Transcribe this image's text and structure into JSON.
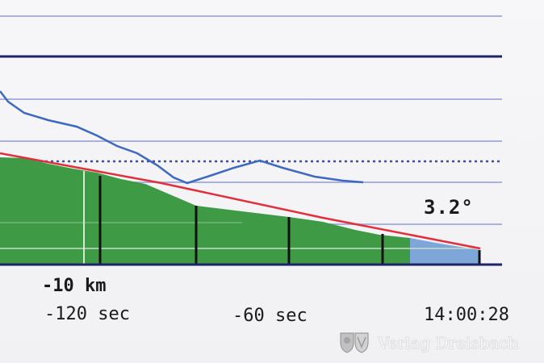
{
  "display": {
    "angle_readout": "3.2°",
    "distance_label": "-10 km",
    "time_labels": [
      "-120 sec",
      "-60 sec"
    ],
    "clock": "14:00:28"
  },
  "watermark": {
    "text": "Verlag Dreisbach",
    "icon": "crest-logo-icon"
  },
  "colors": {
    "terrain": "#3f9a45",
    "terrain_recent": "#7ea6d8",
    "glide_line": "#e0303c",
    "track_line": "#3d69bf",
    "grid": "#aab0e0",
    "grid_bold": "#1f2468",
    "axis": "#1f2468"
  }
}
